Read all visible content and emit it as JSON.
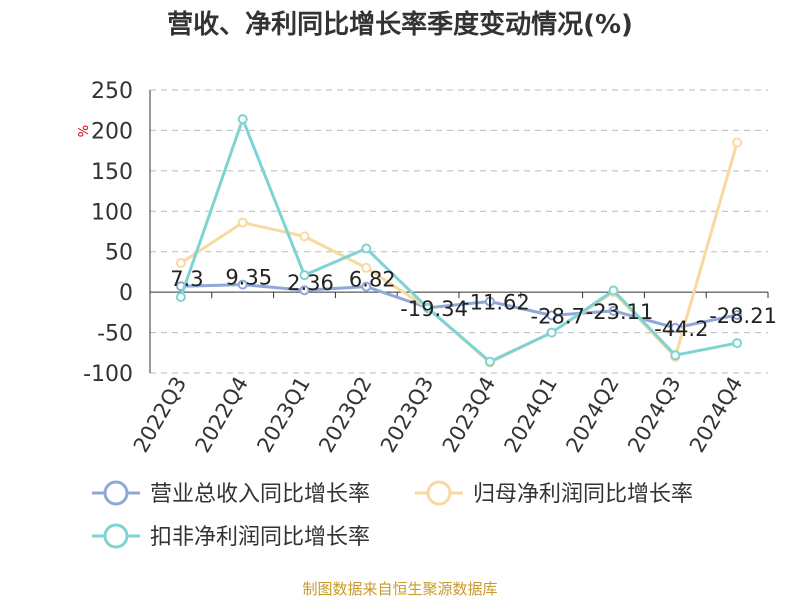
{
  "chart_data": {
    "type": "line",
    "title": "营收、净利同比增长率季度变动情况(%)",
    "ylabel": "%",
    "ylim": [
      -100,
      250
    ],
    "yticks": [
      250,
      200,
      150,
      100,
      50,
      0,
      -50,
      -100
    ],
    "grid": true,
    "legend_position": "bottom-left",
    "categories": [
      "2022Q3",
      "2022Q4",
      "2023Q1",
      "2023Q2",
      "2023Q3",
      "2023Q4",
      "2024Q1",
      "2024Q2",
      "2024Q3",
      "2024Q4"
    ],
    "series": [
      {
        "name": "营业总收入同比增长率",
        "color": "#8fa8d8",
        "values": [
          7.3,
          9.35,
          2.36,
          6.82,
          -19.34,
          -11.62,
          -28.7,
          -23.11,
          -44.2,
          -28.21
        ],
        "data_labels": [
          "7.3",
          "9.35",
          "2.36",
          "6.82",
          "-19.34",
          "-11.62",
          "-28.7",
          "-23.11",
          "-44.2",
          "-28.21"
        ]
      },
      {
        "name": "归母净利润同比增长率",
        "color": "#f8d9a0",
        "values": [
          36,
          86,
          69,
          30,
          -20,
          -87,
          -50,
          0,
          -80,
          185
        ]
      },
      {
        "name": "扣非净利润同比增长率",
        "color": "#7ed3d3",
        "values": [
          -6,
          214,
          21,
          54,
          -20,
          -86,
          -50,
          2,
          -78,
          -63
        ]
      }
    ],
    "source": "制图数据来自恒生聚源数据库"
  }
}
